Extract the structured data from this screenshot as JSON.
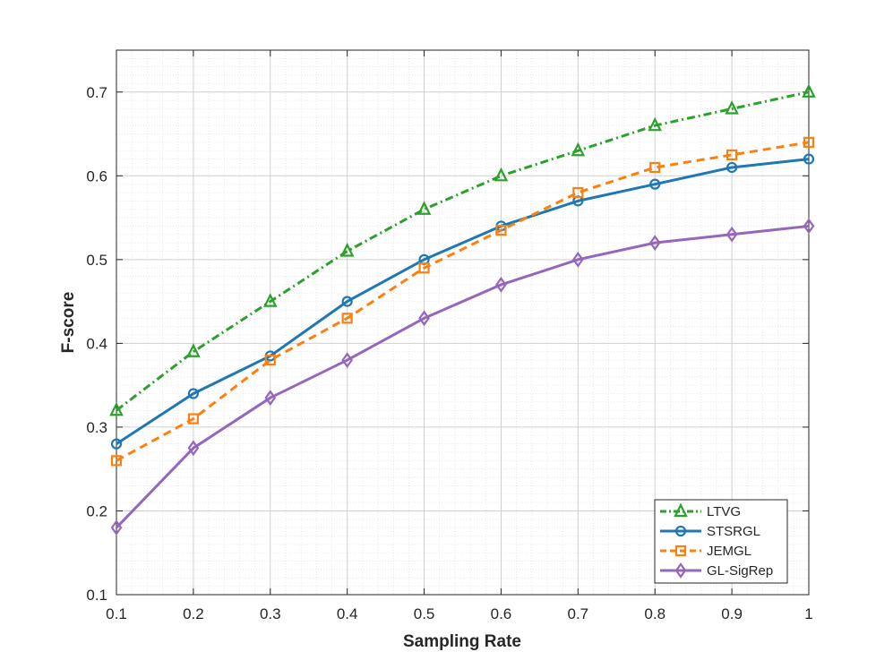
{
  "chart_data": {
    "type": "line",
    "title": "",
    "xlabel": "Sampling Rate",
    "ylabel": "F-score",
    "xlim": [
      0.1,
      1.0
    ],
    "ylim": [
      0.1,
      0.75
    ],
    "xticks": [
      "0.1",
      "0.2",
      "0.3",
      "0.4",
      "0.5",
      "0.6",
      "0.7",
      "0.8",
      "0.9",
      "1"
    ],
    "yticks": [
      "0.1",
      "0.2",
      "0.3",
      "0.4",
      "0.5",
      "0.6",
      "0.7"
    ],
    "grid": true,
    "minor_grid": true,
    "legend_position": "bottom-right",
    "x": [
      0.1,
      0.2,
      0.3,
      0.4,
      0.5,
      0.6,
      0.7,
      0.8,
      0.9,
      1.0
    ],
    "series": [
      {
        "name": "LTVG",
        "values": [
          0.32,
          0.39,
          0.45,
          0.51,
          0.56,
          0.6,
          0.63,
          0.66,
          0.68,
          0.7
        ],
        "color": "#2ca02c",
        "marker": "triangle",
        "dash": "dashdot"
      },
      {
        "name": "STSRGL",
        "values": [
          0.28,
          0.34,
          0.385,
          0.45,
          0.5,
          0.54,
          0.57,
          0.59,
          0.61,
          0.62
        ],
        "color": "#1f77b4",
        "marker": "circle",
        "dash": "solid"
      },
      {
        "name": "JEMGL",
        "values": [
          0.26,
          0.31,
          0.38,
          0.43,
          0.49,
          0.535,
          0.58,
          0.61,
          0.625,
          0.64
        ],
        "color": "#ff7f0e",
        "marker": "square",
        "dash": "dashed"
      },
      {
        "name": "GL-SigRep",
        "values": [
          0.18,
          0.275,
          0.335,
          0.38,
          0.43,
          0.47,
          0.5,
          0.52,
          0.53,
          0.54
        ],
        "color": "#9467bd",
        "marker": "diamond",
        "dash": "solid"
      }
    ]
  }
}
